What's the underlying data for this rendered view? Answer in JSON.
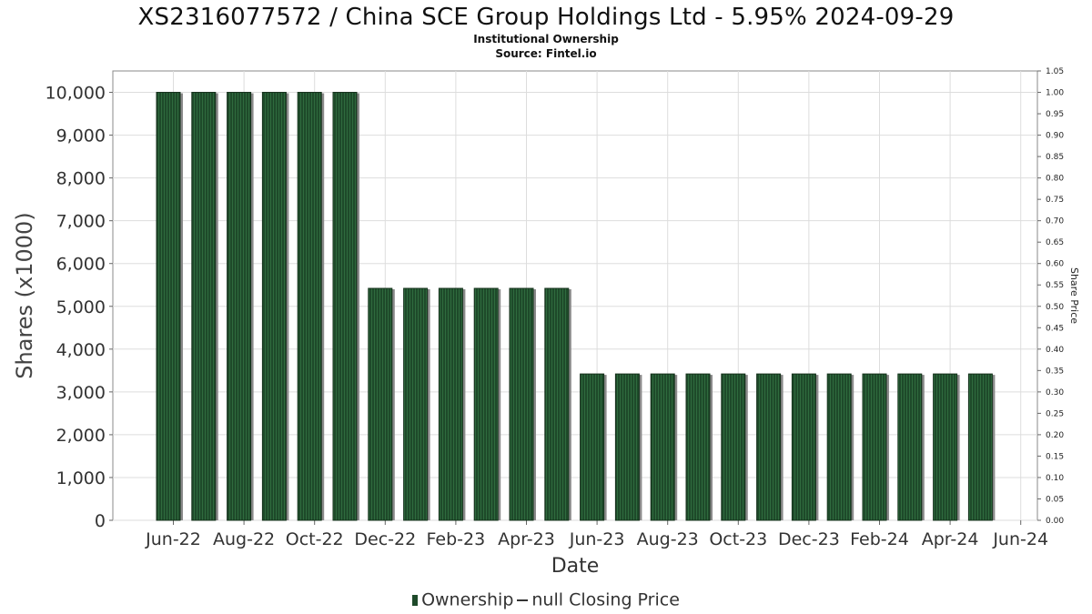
{
  "title": "XS2316077572 / China SCE Group Holdings Ltd - 5.95% 2024-09-29",
  "subtitle": "Institutional Ownership",
  "source": "Source: Fintel.io",
  "legend": {
    "ownership_label": "Ownership",
    "price_label": "null Closing Price"
  },
  "colors": {
    "bar": "#1e4a2a",
    "bar_stripe": "#2f6b3e",
    "shadow": "#8a8a8a",
    "grid": "#dddddd"
  },
  "chart_data": {
    "type": "bar",
    "title": "XS2316077572 / China SCE Group Holdings Ltd - 5.95% 2024-09-29",
    "xlabel": "Date",
    "ylabel": "Shares (x1000)",
    "y2label": "Share Price",
    "ylim": [
      0,
      10500
    ],
    "y2lim": [
      0,
      1.05
    ],
    "yticks": [
      "0",
      "1,000",
      "2,000",
      "3,000",
      "4,000",
      "5,000",
      "6,000",
      "7,000",
      "8,000",
      "9,000",
      "10,000"
    ],
    "y2ticks": [
      "0.00",
      "0.05",
      "0.10",
      "0.15",
      "0.20",
      "0.25",
      "0.30",
      "0.35",
      "0.40",
      "0.45",
      "0.50",
      "0.55",
      "0.60",
      "0.65",
      "0.70",
      "0.75",
      "0.80",
      "0.85",
      "0.90",
      "0.95",
      "1.00",
      "1.05"
    ],
    "xticks": [
      "Jun-22",
      "Aug-22",
      "Oct-22",
      "Dec-22",
      "Feb-23",
      "Apr-23",
      "Jun-23",
      "Aug-23",
      "Oct-23",
      "Dec-23",
      "Feb-24",
      "Apr-24",
      "Jun-24"
    ],
    "grid": true,
    "legend_position": "bottom",
    "series": [
      {
        "name": "Ownership",
        "values": [
          10000,
          10000,
          10000,
          10000,
          10000,
          10000,
          5420,
          5420,
          5420,
          5420,
          5420,
          5420,
          3420,
          3420,
          3420,
          3420,
          3420,
          3420,
          3420,
          3420,
          3420,
          3420,
          3420,
          3420
        ]
      }
    ]
  }
}
